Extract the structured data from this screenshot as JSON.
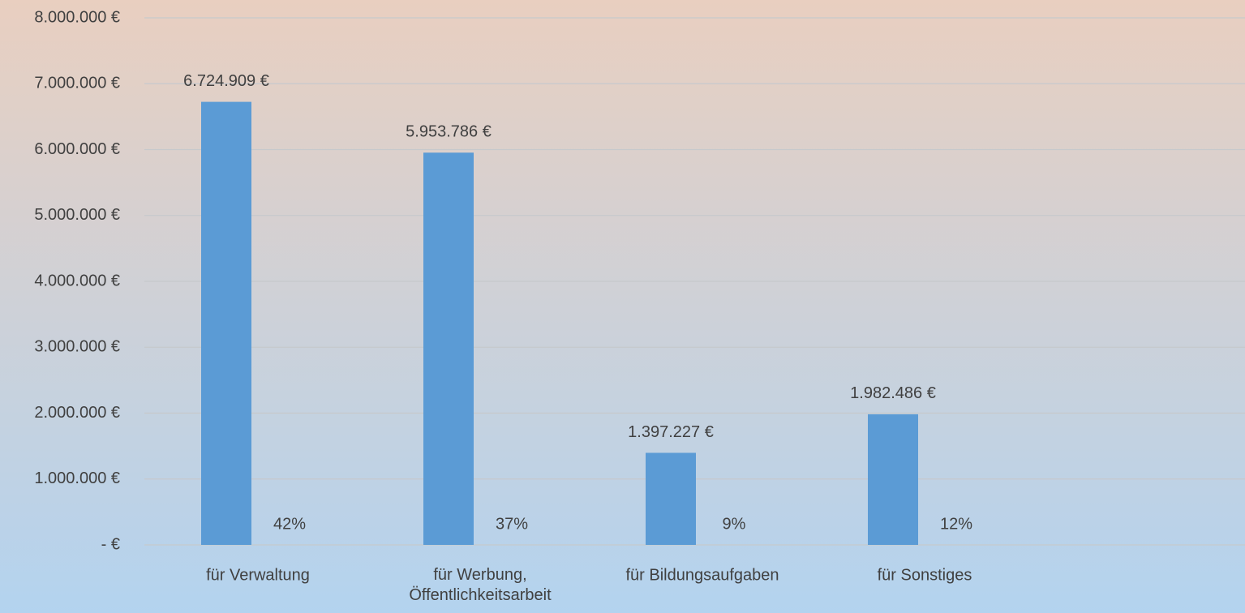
{
  "chart_data": {
    "type": "bar",
    "categories": [
      "für Verwaltung",
      "für Werbung,\nÖffentlichkeitsarbeit",
      "für Bildungsaufgaben",
      "für Sonstiges"
    ],
    "series": [
      {
        "color": "#5b9bd5",
        "values": [
          6724909,
          5953786,
          1397227,
          1982486
        ],
        "value_labels": [
          "6.724.909 €",
          "5.953.786 €",
          "1.397.227 €",
          "1.982.486 €"
        ]
      },
      {
        "color": "#5b9bd5",
        "values": [
          42,
          37,
          9,
          12
        ],
        "value_labels": [
          "42%",
          "37%",
          "9%",
          "12%"
        ]
      }
    ],
    "ylim": [
      0,
      8000000
    ],
    "yticks": [
      {
        "value": 0,
        "label": "-   €"
      },
      {
        "value": 1000000,
        "label": "1.000.000 €"
      },
      {
        "value": 2000000,
        "label": "2.000.000 €"
      },
      {
        "value": 3000000,
        "label": "3.000.000 €"
      },
      {
        "value": 4000000,
        "label": "4.000.000 €"
      },
      {
        "value": 5000000,
        "label": "5.000.000 €"
      },
      {
        "value": 6000000,
        "label": "6.000.000 €"
      },
      {
        "value": 7000000,
        "label": "7.000.000 €"
      },
      {
        "value": 8000000,
        "label": "8.000.000 €"
      }
    ],
    "grid": true
  }
}
